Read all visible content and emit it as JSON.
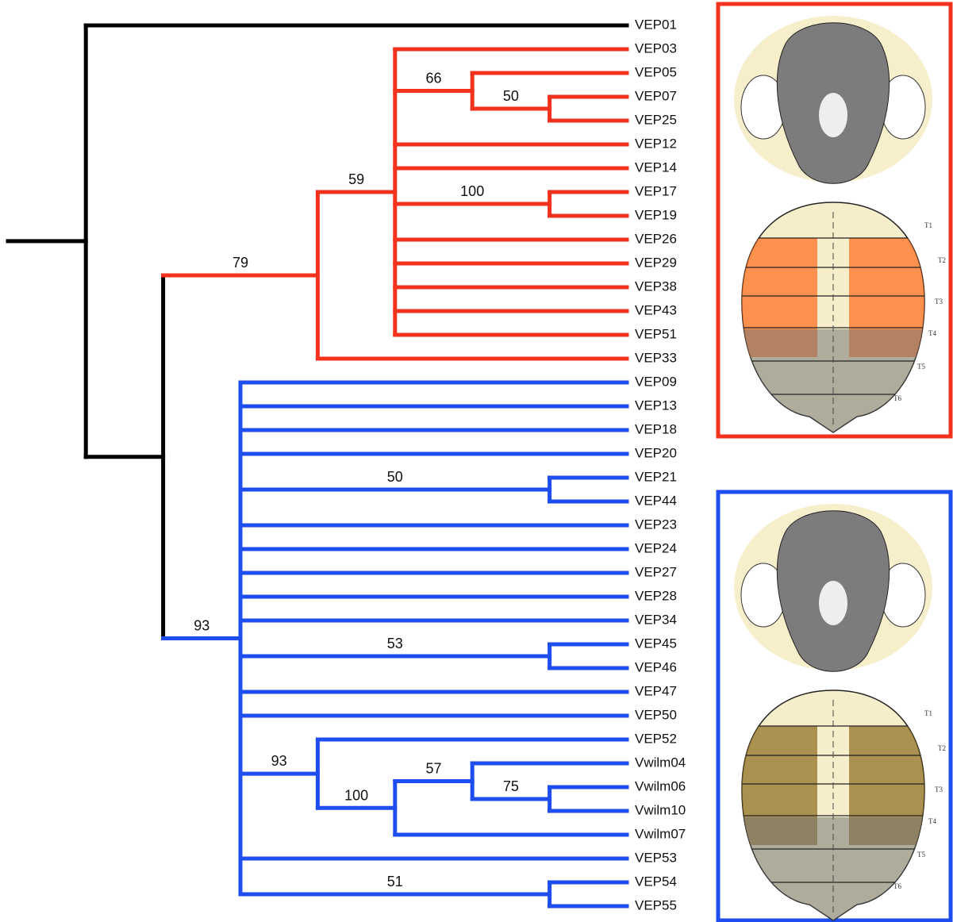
{
  "tree": {
    "children": [
      {
        "label": "VEP01"
      },
      {
        "children": [
          {
            "support": 79,
            "children": [
              {
                "support": 59,
                "children": [
                  {
                    "label": "VEP03"
                  },
                  {
                    "support": 66,
                    "children": [
                      {
                        "label": "VEP05"
                      },
                      {
                        "support": 50,
                        "children": [
                          {
                            "label": "VEP07"
                          },
                          {
                            "label": "VEP25"
                          }
                        ]
                      }
                    ]
                  },
                  {
                    "label": "VEP12"
                  },
                  {
                    "label": "VEP14"
                  },
                  {
                    "support": 100,
                    "children": [
                      {
                        "label": "VEP17"
                      },
                      {
                        "label": "VEP19"
                      }
                    ]
                  },
                  {
                    "label": "VEP26"
                  },
                  {
                    "label": "VEP29"
                  },
                  {
                    "label": "VEP38"
                  },
                  {
                    "label": "VEP43"
                  },
                  {
                    "label": "VEP51"
                  }
                ]
              },
              {
                "label": "VEP33"
              }
            ]
          },
          {
            "support": 93,
            "children": [
              {
                "label": "VEP09"
              },
              {
                "label": "VEP13"
              },
              {
                "label": "VEP18"
              },
              {
                "label": "VEP20"
              },
              {
                "support": 50,
                "children": [
                  {
                    "label": "VEP21"
                  },
                  {
                    "label": "VEP44"
                  }
                ]
              },
              {
                "label": "VEP23"
              },
              {
                "label": "VEP24"
              },
              {
                "label": "VEP27"
              },
              {
                "label": "VEP28"
              },
              {
                "label": "VEP34"
              },
              {
                "support": 53,
                "children": [
                  {
                    "label": "VEP45"
                  },
                  {
                    "label": "VEP46"
                  }
                ]
              },
              {
                "label": "VEP47"
              },
              {
                "label": "VEP50"
              },
              {
                "support": 93,
                "children": [
                  {
                    "label": "VEP52"
                  },
                  {
                    "support": 100,
                    "children": [
                      {
                        "support": 57,
                        "children": [
                          {
                            "label": "Vwilm04"
                          },
                          {
                            "support": 75,
                            "children": [
                              {
                                "label": "Vwilm06"
                              },
                              {
                                "label": "Vwilm10"
                              }
                            ]
                          }
                        ]
                      },
                      {
                        "label": "Vwilm07"
                      }
                    ]
                  }
                ]
              },
              {
                "label": "VEP53"
              },
              {
                "support": 51,
                "children": [
                  {
                    "label": "VEP54"
                  },
                  {
                    "label": "VEP55"
                  }
                ]
              }
            ]
          }
        ]
      }
    ]
  },
  "figures": [
    {
      "segments": [
        "T1",
        "T2",
        "T3",
        "T4",
        "T5",
        "T6"
      ]
    },
    {
      "segments": [
        "T1",
        "T2",
        "T3",
        "T4",
        "T5",
        "T6"
      ]
    }
  ]
}
